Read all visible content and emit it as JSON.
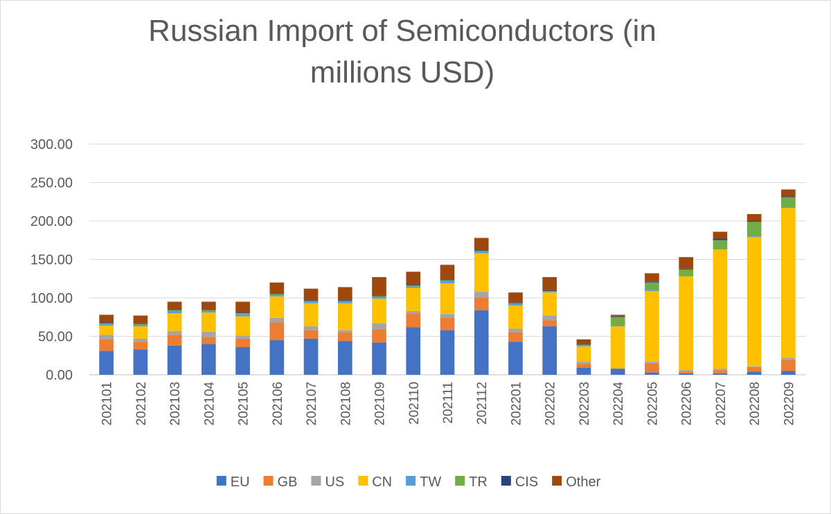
{
  "chart_data": {
    "type": "bar",
    "stacked": true,
    "title_line1": "Russian Import of Semiconductors (in",
    "title_line2": "millions USD)",
    "xlabel": "",
    "ylabel": "",
    "ylim": [
      0,
      300
    ],
    "yticks": [
      "0.00",
      "50.00",
      "100.00",
      "150.00",
      "200.00",
      "250.00",
      "300.00"
    ],
    "ytick_values": [
      0,
      50,
      100,
      150,
      200,
      250,
      300
    ],
    "grid": true,
    "legend_position": "bottom",
    "categories": [
      "202101",
      "202102",
      "202103",
      "202104",
      "202105",
      "202106",
      "202107",
      "202108",
      "202109",
      "202110",
      "202111",
      "202112",
      "202201",
      "202202",
      "202203",
      "202204",
      "202205",
      "202206",
      "202207",
      "202208",
      "202209"
    ],
    "series": [
      {
        "name": "EU",
        "color": "#4472C4",
        "values": [
          31,
          33,
          38,
          40,
          36,
          45,
          47,
          44,
          42,
          62,
          58,
          84,
          43,
          63,
          9,
          8,
          3,
          2,
          2,
          4,
          5
        ]
      },
      {
        "name": "GB",
        "color": "#ED7D31",
        "values": [
          15,
          10,
          14,
          9,
          11,
          23,
          11,
          11,
          17,
          18,
          16,
          16,
          12,
          8,
          5,
          0,
          12,
          2,
          4,
          6,
          14
        ]
      },
      {
        "name": "US",
        "color": "#A5A5A5",
        "values": [
          6,
          4,
          5,
          7,
          4,
          6,
          5,
          3,
          8,
          3,
          5,
          8,
          5,
          6,
          3,
          0,
          2,
          2,
          2,
          1,
          3
        ]
      },
      {
        "name": "CN",
        "color": "#FFC000",
        "values": [
          12,
          16,
          23,
          25,
          25,
          28,
          30,
          35,
          32,
          30,
          40,
          50,
          30,
          30,
          20,
          55,
          92,
          122,
          155,
          168,
          195
        ]
      },
      {
        "name": "TW",
        "color": "#5B9BD5",
        "values": [
          2,
          2,
          3,
          2,
          3,
          2,
          2,
          2,
          2,
          2,
          3,
          2,
          2,
          1,
          1,
          1,
          1,
          0,
          0,
          1,
          1
        ]
      },
      {
        "name": "TR",
        "color": "#70AD47",
        "values": [
          1,
          1,
          1,
          1,
          1,
          1,
          1,
          1,
          1,
          1,
          1,
          1,
          1,
          1,
          1,
          11,
          10,
          9,
          12,
          19,
          13
        ]
      },
      {
        "name": "CIS",
        "color": "#264478",
        "values": [
          1,
          1,
          1,
          1,
          1,
          1,
          1,
          1,
          1,
          1,
          1,
          1,
          1,
          1,
          1,
          1,
          1,
          1,
          2,
          1,
          1
        ]
      },
      {
        "name": "Other",
        "color": "#9E480E",
        "values": [
          10,
          10,
          10,
          10,
          14,
          14,
          15,
          17,
          24,
          17,
          19,
          16,
          13,
          17,
          6,
          2,
          11,
          15,
          9,
          9,
          9
        ]
      }
    ]
  }
}
